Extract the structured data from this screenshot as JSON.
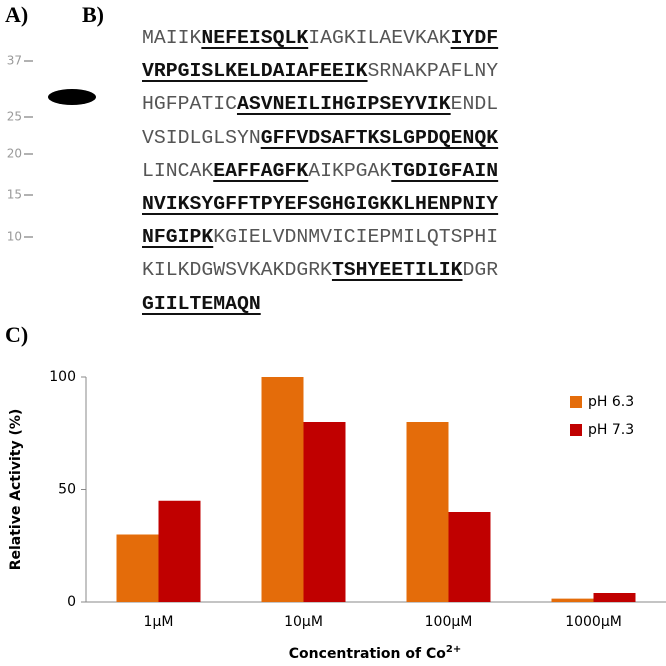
{
  "panel_a": {
    "label": "A)",
    "markers": [
      "37",
      "25",
      "20",
      "15",
      "10"
    ]
  },
  "panel_b": {
    "label": "B)",
    "lines": [
      [
        {
          "text": "MAIIK",
          "bold": false
        },
        {
          "text": "NEFEISQLK",
          "bold": true
        },
        {
          "text": "IAGKILAEVKAK",
          "bold": false
        },
        {
          "text": "IYDF",
          "bold": true
        }
      ],
      [
        {
          "text": "VRPGISLKELDAIAFEEIK",
          "bold": true
        },
        {
          "text": "SRNAKPAFLNY",
          "bold": false
        }
      ],
      [
        {
          "text": "HGFPATIC",
          "bold": false
        },
        {
          "text": "ASVNEILIHGIPSEYVIK",
          "bold": true
        },
        {
          "text": "ENDL",
          "bold": false
        }
      ],
      [
        {
          "text": "VSIDLGLSYN",
          "bold": false
        },
        {
          "text": "GFFVDSAFTKSLGPDQENQK",
          "bold": true
        }
      ],
      [
        {
          "text": "LINCAK",
          "bold": false
        },
        {
          "text": "EAFFAGFK",
          "bold": true
        },
        {
          "text": "AIKPGAK",
          "bold": false
        },
        {
          "text": "TGDIGFAIN",
          "bold": true
        }
      ],
      [
        {
          "text": "NVIKSYGFFTPYEFSGHGIGKKLHENPNIY",
          "bold": true
        }
      ],
      [
        {
          "text": "NFGIPK",
          "bold": true
        },
        {
          "text": "KGIELVDNMVICIEPMILQTSPHI",
          "bold": false
        }
      ],
      [
        {
          "text": "KILKDGWSVKAKDGRK",
          "bold": false
        },
        {
          "text": "TSHYEETILIK",
          "bold": true
        },
        {
          "text": "DGR",
          "bold": false
        }
      ],
      [
        {
          "text": "GIILTEMAQN",
          "bold": true
        }
      ]
    ]
  },
  "panel_c": {
    "label": "C)"
  },
  "chart_data": {
    "type": "bar",
    "x_label": "Concentration of Co",
    "x_label_sup": "2+",
    "y_label": "Relative Activity (%)",
    "categories": [
      "1µM",
      "10µM",
      "100µM",
      "1000µM"
    ],
    "series": [
      {
        "name": "pH 6.3",
        "color": "#e46c0a",
        "values": [
          30,
          100,
          80,
          1.5
        ]
      },
      {
        "name": "pH 7.3",
        "color": "#c00000",
        "values": [
          45,
          80,
          40,
          4
        ]
      }
    ],
    "ylim": [
      0,
      100
    ],
    "yticks": [
      0,
      50,
      100
    ],
    "grid": false,
    "legend": "top-right"
  }
}
